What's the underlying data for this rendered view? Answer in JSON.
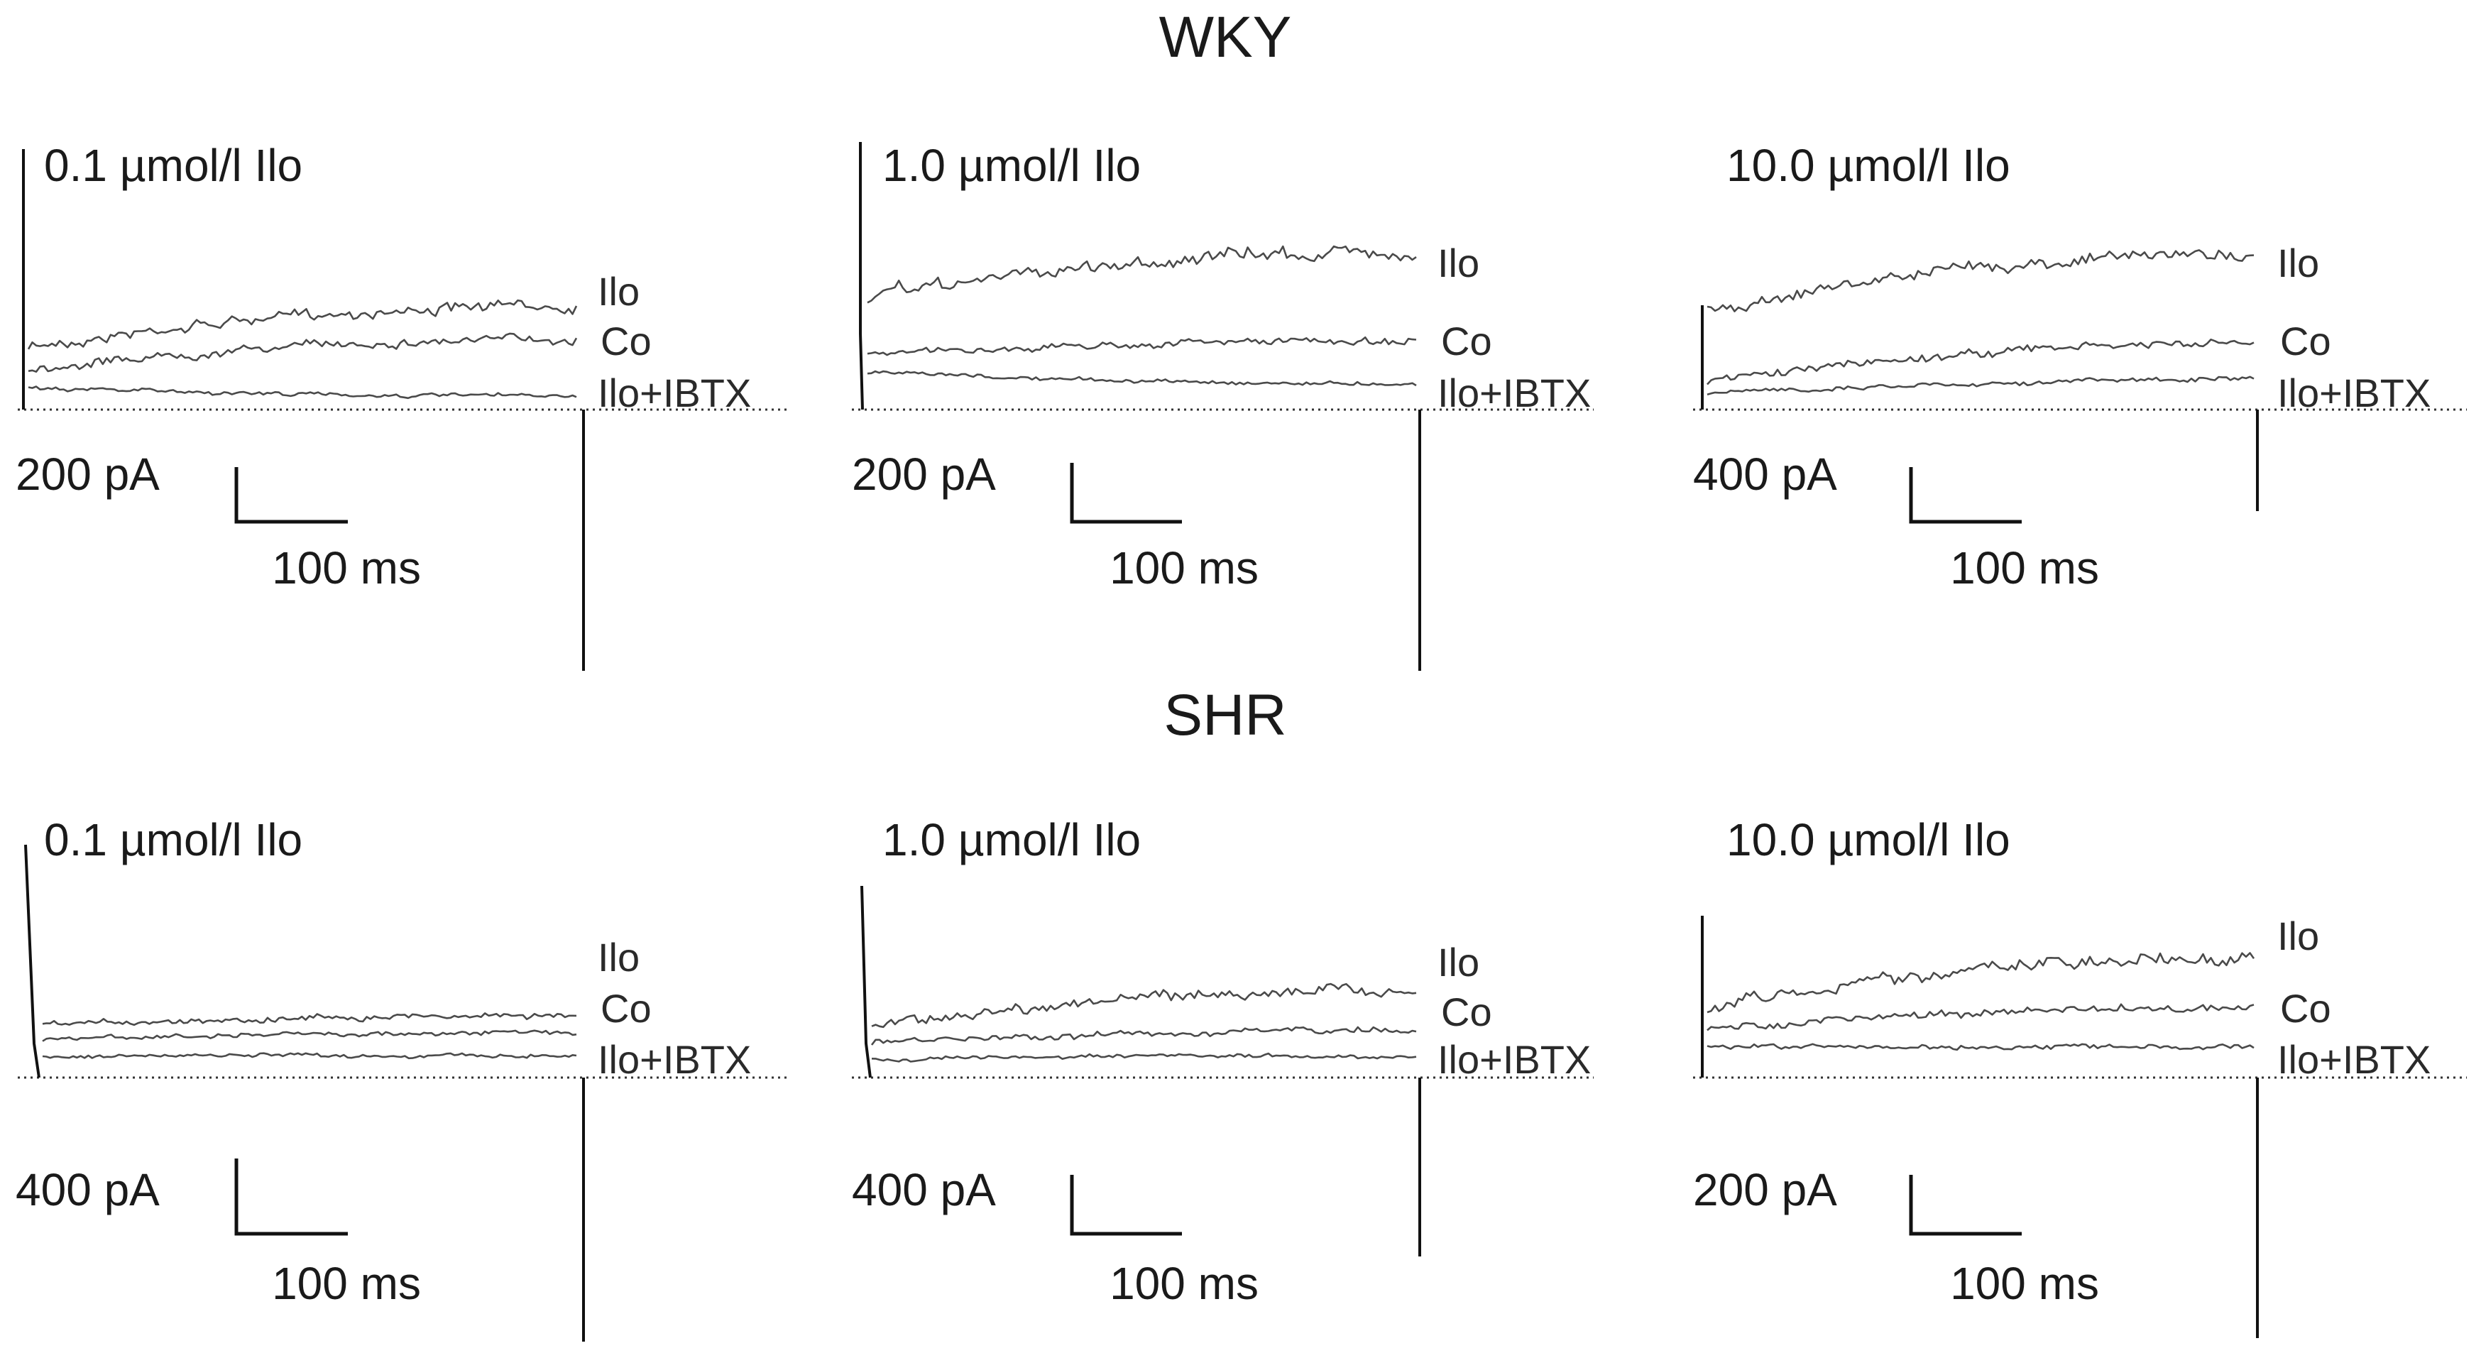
{
  "rows": [
    {
      "title": "WKY",
      "panels": [
        {
          "concentration": "0.1 µmol/l Ilo",
          "current_scale": "200 pA",
          "time_scale": "100 ms",
          "traces": [
            {
              "label": "Ilo"
            },
            {
              "label": "Co"
            },
            {
              "label": "Ilo+IBTX"
            }
          ]
        },
        {
          "concentration": "1.0 µmol/l Ilo",
          "current_scale": "200 pA",
          "time_scale": "100 ms",
          "traces": [
            {
              "label": "Ilo"
            },
            {
              "label": "Co"
            },
            {
              "label": "Ilo+IBTX"
            }
          ]
        },
        {
          "concentration": "10.0 µmol/l Ilo",
          "current_scale": "400 pA",
          "time_scale": "100 ms",
          "traces": [
            {
              "label": "Ilo"
            },
            {
              "label": "Co"
            },
            {
              "label": "Ilo+IBTX"
            }
          ]
        }
      ]
    },
    {
      "title": "SHR",
      "panels": [
        {
          "concentration": "0.1 µmol/l Ilo",
          "current_scale": "400 pA",
          "time_scale": "100 ms",
          "traces": [
            {
              "label": "Ilo"
            },
            {
              "label": "Co"
            },
            {
              "label": "Ilo+IBTX"
            }
          ]
        },
        {
          "concentration": "1.0 µmol/l Ilo",
          "current_scale": "400 pA",
          "time_scale": "100 ms",
          "traces": [
            {
              "label": "Ilo"
            },
            {
              "label": "Co"
            },
            {
              "label": "Ilo+IBTX"
            }
          ]
        },
        {
          "concentration": "10.0 µmol/l Ilo",
          "current_scale": "200 pA",
          "time_scale": "100 ms",
          "traces": [
            {
              "label": "Ilo"
            },
            {
              "label": "Co"
            },
            {
              "label": "Ilo+IBTX"
            }
          ]
        }
      ]
    }
  ]
}
